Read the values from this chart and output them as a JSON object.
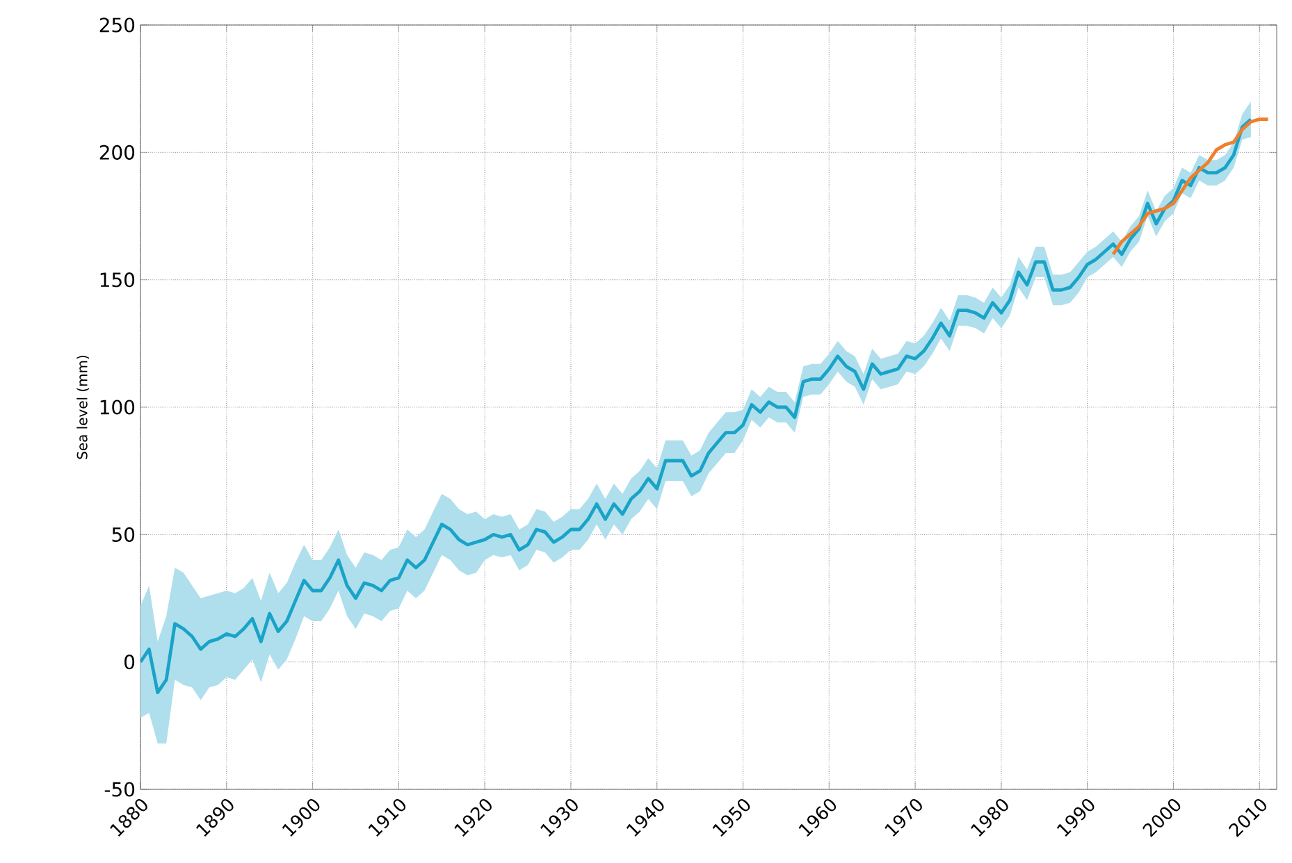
{
  "chart_data": {
    "type": "line",
    "ylabel": "Sea level (mm)",
    "xlim": [
      1880,
      2012
    ],
    "ylim": [
      -50,
      250
    ],
    "xticks": [
      1880,
      1890,
      1900,
      1910,
      1920,
      1930,
      1940,
      1950,
      1960,
      1970,
      1980,
      1990,
      2000,
      2010
    ],
    "yticks": [
      -50,
      0,
      50,
      100,
      150,
      200,
      250
    ],
    "grid": true,
    "series": [
      {
        "color": "#1aa3c8",
        "x": [
          1880,
          1881,
          1882,
          1883,
          1884,
          1885,
          1886,
          1887,
          1888,
          1889,
          1890,
          1891,
          1892,
          1893,
          1894,
          1895,
          1896,
          1897,
          1898,
          1899,
          1900,
          1901,
          1902,
          1903,
          1904,
          1905,
          1906,
          1907,
          1908,
          1909,
          1910,
          1911,
          1912,
          1913,
          1914,
          1915,
          1916,
          1917,
          1918,
          1919,
          1920,
          1921,
          1922,
          1923,
          1924,
          1925,
          1926,
          1927,
          1928,
          1929,
          1930,
          1931,
          1932,
          1933,
          1934,
          1935,
          1936,
          1937,
          1938,
          1939,
          1940,
          1941,
          1942,
          1943,
          1944,
          1945,
          1946,
          1947,
          1948,
          1949,
          1950,
          1951,
          1952,
          1953,
          1954,
          1955,
          1956,
          1957,
          1958,
          1959,
          1960,
          1961,
          1962,
          1963,
          1964,
          1965,
          1966,
          1967,
          1968,
          1969,
          1970,
          1971,
          1972,
          1973,
          1974,
          1975,
          1976,
          1977,
          1978,
          1979,
          1980,
          1981,
          1982,
          1983,
          1984,
          1985,
          1986,
          1987,
          1988,
          1989,
          1990,
          1991,
          1992,
          1993,
          1994,
          1995,
          1996,
          1997,
          1998,
          1999,
          2000,
          2001,
          2002,
          2003,
          2004,
          2005,
          2006,
          2007,
          2008,
          2009
        ],
        "values": [
          0,
          5,
          -12,
          -7,
          15,
          13,
          10,
          5,
          8,
          9,
          11,
          10,
          13,
          17,
          8,
          19,
          12,
          16,
          24,
          32,
          28,
          28,
          33,
          40,
          30,
          25,
          31,
          30,
          28,
          32,
          33,
          40,
          37,
          40,
          47,
          54,
          52,
          48,
          46,
          47,
          48,
          50,
          49,
          50,
          44,
          46,
          52,
          51,
          47,
          49,
          52,
          52,
          56,
          62,
          56,
          62,
          58,
          64,
          67,
          72,
          68,
          79,
          79,
          79,
          73,
          75,
          82,
          86,
          90,
          90,
          93,
          101,
          98,
          102,
          100,
          100,
          96,
          110,
          111,
          111,
          115,
          120,
          116,
          114,
          107,
          117,
          113,
          114,
          115,
          120,
          119,
          122,
          127,
          133,
          128,
          138,
          138,
          137,
          135,
          141,
          137,
          142,
          153,
          148,
          157,
          157,
          146,
          146,
          147,
          151,
          156,
          158,
          161,
          164,
          160,
          166,
          170,
          180,
          172,
          178,
          181,
          189,
          187,
          194,
          192,
          192,
          194,
          199,
          210,
          213
        ],
        "upper": [
          22,
          30,
          8,
          18,
          37,
          35,
          30,
          25,
          26,
          27,
          28,
          27,
          29,
          33,
          24,
          35,
          27,
          31,
          39,
          46,
          40,
          40,
          45,
          52,
          42,
          37,
          43,
          42,
          40,
          44,
          45,
          52,
          49,
          52,
          59,
          66,
          64,
          60,
          58,
          59,
          56,
          58,
          57,
          58,
          52,
          54,
          60,
          59,
          55,
          57,
          60,
          60,
          64,
          70,
          64,
          70,
          66,
          72,
          75,
          80,
          76,
          87,
          87,
          87,
          81,
          83,
          90,
          94,
          98,
          98,
          99,
          107,
          104,
          108,
          106,
          106,
          102,
          116,
          117,
          117,
          121,
          126,
          122,
          120,
          113,
          123,
          119,
          120,
          121,
          126,
          125,
          128,
          133,
          139,
          134,
          144,
          144,
          143,
          141,
          147,
          143,
          148,
          159,
          154,
          163,
          163,
          152,
          152,
          153,
          157,
          161,
          163,
          166,
          169,
          165,
          171,
          175,
          185,
          177,
          183,
          186,
          194,
          192,
          199,
          197,
          197,
          199,
          204,
          215,
          220
        ],
        "lower": [
          -22,
          -20,
          -32,
          -32,
          -7,
          -9,
          -10,
          -15,
          -10,
          -9,
          -6,
          -7,
          -3,
          1,
          -8,
          3,
          -3,
          1,
          9,
          18,
          16,
          16,
          21,
          28,
          18,
          13,
          19,
          18,
          16,
          20,
          21,
          28,
          25,
          28,
          35,
          42,
          40,
          36,
          34,
          35,
          40,
          42,
          41,
          42,
          36,
          38,
          44,
          43,
          39,
          41,
          44,
          44,
          48,
          54,
          48,
          54,
          50,
          56,
          59,
          64,
          60,
          71,
          71,
          71,
          65,
          67,
          74,
          78,
          82,
          82,
          87,
          95,
          92,
          96,
          94,
          94,
          90,
          104,
          105,
          105,
          109,
          114,
          110,
          108,
          101,
          111,
          107,
          108,
          109,
          114,
          113,
          116,
          121,
          127,
          122,
          132,
          132,
          131,
          129,
          135,
          131,
          136,
          147,
          142,
          151,
          151,
          140,
          140,
          141,
          145,
          151,
          153,
          156,
          159,
          155,
          161,
          165,
          175,
          167,
          173,
          176,
          184,
          182,
          189,
          187,
          187,
          189,
          194,
          205,
          206
        ]
      },
      {
        "color": "#f07f2a",
        "x": [
          1993,
          1994,
          1995,
          1996,
          1997,
          1998,
          1999,
          2000,
          2001,
          2002,
          2003,
          2004,
          2005,
          2006,
          2007,
          2008,
          2009,
          2010,
          2011
        ],
        "values": [
          160,
          165,
          168,
          171,
          176,
          177,
          178,
          180,
          185,
          190,
          193,
          196,
          201,
          203,
          204,
          209,
          212,
          213,
          213
        ]
      }
    ]
  }
}
